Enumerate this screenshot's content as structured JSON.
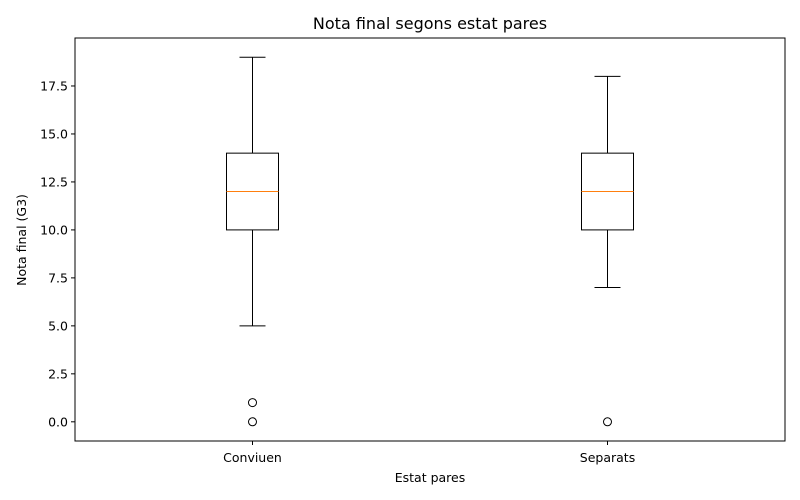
{
  "chart_data": {
    "type": "boxplot",
    "title": "Nota final segons estat pares",
    "xlabel": "Estat pares",
    "ylabel": "Nota final (G3)",
    "ylim": [
      -1,
      20
    ],
    "yticks": [
      0.0,
      2.5,
      5.0,
      7.5,
      10.0,
      12.5,
      15.0,
      17.5
    ],
    "ytick_labels": [
      "0.0",
      "2.5",
      "5.0",
      "7.5",
      "10.0",
      "12.5",
      "15.0",
      "17.5"
    ],
    "grid": false,
    "categories": [
      "Conviuen",
      "Separats"
    ],
    "series": [
      {
        "category": "Conviuen",
        "whisker_low": 5,
        "q1": 10,
        "median": 12,
        "q3": 14,
        "whisker_high": 19,
        "outliers": [
          1,
          0
        ]
      },
      {
        "category": "Separats",
        "whisker_low": 7,
        "q1": 10,
        "median": 12,
        "q3": 14,
        "whisker_high": 18,
        "outliers": [
          0
        ]
      }
    ],
    "colors": {
      "box": "#000000",
      "median": "#ff7f0e",
      "outlier": "#000000",
      "frame": "#000000"
    }
  }
}
